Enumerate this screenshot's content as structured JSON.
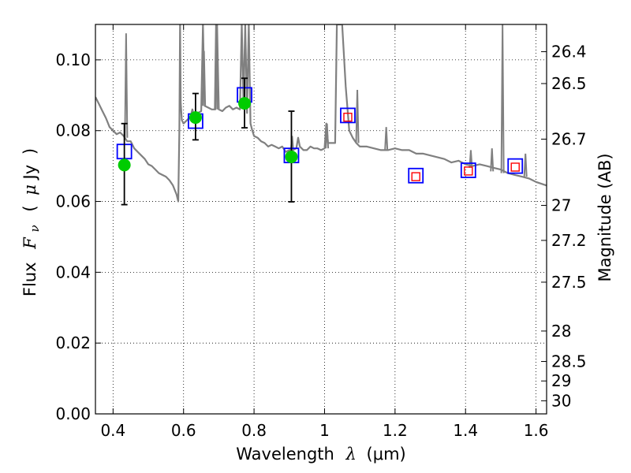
{
  "chart_data": {
    "type": "scatter",
    "title": "",
    "xlabel_text": "Wavelength",
    "xlabel_symbol": "λ",
    "xlabel_unit": "(μm)",
    "ylabel_text": "Flux",
    "ylabel_symbol": "F",
    "ylabel_symbol_sub": "ν",
    "ylabel_unit_open": "(",
    "ylabel_unit_mu": "μ",
    "ylabel_unit": "Jy",
    "ylabel_unit_close": ")",
    "y2label": "Magnitude (AB)",
    "xlim": [
      0.35,
      1.63
    ],
    "ylim": [
      0.0,
      0.11
    ],
    "grid": true,
    "x_ticks": [
      0.4,
      0.6,
      0.8,
      1.0,
      1.2,
      1.4,
      1.6
    ],
    "x_tick_labels": [
      "0.4",
      "0.6",
      "0.8",
      "1",
      "1.2",
      "1.4",
      "1.6"
    ],
    "y_ticks": [
      0.0,
      0.02,
      0.04,
      0.06,
      0.08,
      0.1
    ],
    "y_tick_labels": [
      "0.00",
      "0.02",
      "0.04",
      "0.06",
      "0.08",
      "0.10"
    ],
    "y2_ticks": [
      {
        "label": "26.4",
        "flux": 0.1023
      },
      {
        "label": "26.5",
        "flux": 0.0933
      },
      {
        "label": "26.7",
        "flux": 0.0776
      },
      {
        "label": "27",
        "flux": 0.0589
      },
      {
        "label": "27.2",
        "flux": 0.049
      },
      {
        "label": "27.5",
        "flux": 0.0372
      },
      {
        "label": "28",
        "flux": 0.0234
      },
      {
        "label": "28.5",
        "flux": 0.0148
      },
      {
        "label": "29",
        "flux": 0.0093
      },
      {
        "label": "30",
        "flux": 0.0037
      }
    ],
    "series": [
      {
        "kind": "model-spectrum",
        "color": "#808080",
        "x": [
          0.35,
          0.36,
          0.37,
          0.38,
          0.39,
          0.4,
          0.41,
          0.42,
          0.43,
          0.44,
          0.45,
          0.46,
          0.47,
          0.48,
          0.49,
          0.5,
          0.51,
          0.52,
          0.53,
          0.54,
          0.55,
          0.56,
          0.57,
          0.58,
          0.585,
          0.588,
          0.59,
          0.592,
          0.595,
          0.6,
          0.61,
          0.62,
          0.625,
          0.63,
          0.64,
          0.65,
          0.655,
          0.66,
          0.67,
          0.68,
          0.69,
          0.695,
          0.7,
          0.71,
          0.72,
          0.73,
          0.74,
          0.75,
          0.76,
          0.765,
          0.77,
          0.775,
          0.78,
          0.785,
          0.79,
          0.795,
          0.8,
          0.81,
          0.82,
          0.83,
          0.84,
          0.85,
          0.86,
          0.87,
          0.88,
          0.89,
          0.9,
          0.91,
          0.92,
          0.925,
          0.93,
          0.94,
          0.95,
          0.96,
          0.97,
          0.98,
          0.99,
          1.0,
          1.005,
          1.01,
          1.02,
          1.03,
          1.035,
          1.04,
          1.05,
          1.06,
          1.07,
          1.08,
          1.09,
          1.1,
          1.12,
          1.14,
          1.16,
          1.18,
          1.2,
          1.22,
          1.24,
          1.26,
          1.28,
          1.3,
          1.32,
          1.34,
          1.36,
          1.38,
          1.4,
          1.42,
          1.44,
          1.46,
          1.48,
          1.5,
          1.52,
          1.54,
          1.56,
          1.58,
          1.6,
          1.63
        ],
        "y": [
          0.0895,
          0.0875,
          0.0855,
          0.0835,
          0.081,
          0.08,
          0.079,
          0.0795,
          0.0785,
          0.077,
          0.077,
          0.075,
          0.074,
          0.073,
          0.072,
          0.0705,
          0.07,
          0.069,
          0.068,
          0.0675,
          0.067,
          0.066,
          0.0645,
          0.062,
          0.06,
          0.08,
          0.11,
          0.088,
          0.083,
          0.082,
          0.083,
          0.084,
          0.086,
          0.084,
          0.085,
          0.0855,
          0.11,
          0.087,
          0.0865,
          0.086,
          0.086,
          0.11,
          0.086,
          0.0855,
          0.0865,
          0.087,
          0.086,
          0.0865,
          0.086,
          0.11,
          0.0875,
          0.11,
          0.085,
          0.11,
          0.082,
          0.08,
          0.0785,
          0.078,
          0.077,
          0.0765,
          0.0755,
          0.076,
          0.0755,
          0.075,
          0.0755,
          0.074,
          0.0745,
          0.0745,
          0.075,
          0.078,
          0.0755,
          0.0745,
          0.0745,
          0.0755,
          0.075,
          0.075,
          0.0745,
          0.075,
          0.082,
          0.0765,
          0.0765,
          0.0765,
          0.11,
          0.11,
          0.11,
          0.0925,
          0.08,
          0.078,
          0.0765,
          0.0755,
          0.0755,
          0.075,
          0.0745,
          0.0745,
          0.075,
          0.0745,
          0.0745,
          0.0735,
          0.0735,
          0.073,
          0.0725,
          0.072,
          0.071,
          0.0715,
          0.0705,
          0.07,
          0.0705,
          0.07,
          0.0695,
          0.069,
          0.068,
          0.0675,
          0.067,
          0.0665,
          0.0655,
          0.0645
        ],
        "spikes": [
          {
            "x": 0.437,
            "base": 0.078,
            "top": 0.1075
          },
          {
            "x": 0.658,
            "base": 0.087,
            "top": 0.1025
          },
          {
            "x": 0.692,
            "base": 0.086,
            "top": 0.11
          },
          {
            "x": 0.908,
            "base": 0.0745,
            "top": 0.0785
          },
          {
            "x": 1.007,
            "base": 0.075,
            "top": 0.082
          },
          {
            "x": 1.093,
            "base": 0.0765,
            "top": 0.0915
          },
          {
            "x": 1.175,
            "base": 0.0745,
            "top": 0.081
          },
          {
            "x": 1.415,
            "base": 0.0695,
            "top": 0.0745
          },
          {
            "x": 1.475,
            "base": 0.0685,
            "top": 0.075
          },
          {
            "x": 1.505,
            "base": 0.068,
            "top": 0.11
          },
          {
            "x": 1.57,
            "base": 0.067,
            "top": 0.0735
          }
        ]
      },
      {
        "kind": "model-photometry",
        "color": "#0000ff",
        "marker": "open-square",
        "points": [
          {
            "x": 0.432,
            "y": 0.0741
          },
          {
            "x": 0.634,
            "y": 0.0827
          },
          {
            "x": 0.773,
            "y": 0.0901
          },
          {
            "x": 0.906,
            "y": 0.073
          },
          {
            "x": 1.066,
            "y": 0.0843
          },
          {
            "x": 1.259,
            "y": 0.0673
          },
          {
            "x": 1.408,
            "y": 0.0688
          },
          {
            "x": 1.541,
            "y": 0.07
          }
        ]
      },
      {
        "kind": "upper-limits",
        "color": "#ff0000",
        "marker": "small-open-square",
        "points": [
          {
            "x": 1.066,
            "y": 0.0838
          },
          {
            "x": 1.259,
            "y": 0.067
          },
          {
            "x": 1.408,
            "y": 0.0686
          },
          {
            "x": 1.541,
            "y": 0.0697
          }
        ]
      },
      {
        "kind": "observed-photometry",
        "color": "#00cc00",
        "marker": "filled-circle",
        "error_color": "#000000",
        "points": [
          {
            "x": 0.432,
            "y": 0.0703,
            "err_low": 0.0591,
            "err_high": 0.082
          },
          {
            "x": 0.634,
            "y": 0.0837,
            "err_low": 0.0774,
            "err_high": 0.0905
          },
          {
            "x": 0.773,
            "y": 0.0877,
            "err_low": 0.0808,
            "err_high": 0.0948
          },
          {
            "x": 0.906,
            "y": 0.0726,
            "err_low": 0.0599,
            "err_high": 0.0855
          }
        ]
      }
    ]
  }
}
